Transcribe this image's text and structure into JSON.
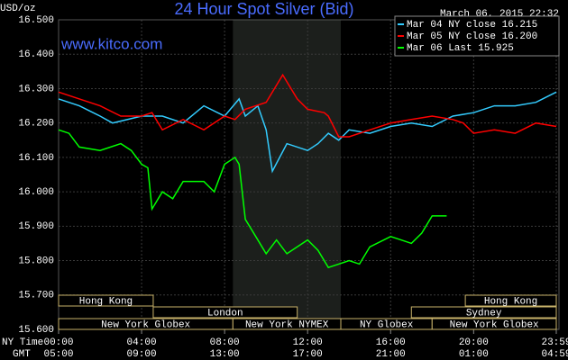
{
  "chart_data": {
    "type": "line",
    "title": "24 Hour Spot Silver (Bid)",
    "site": "www.kitco.com",
    "timestamp": "March 06, 2015 22:32",
    "y_label": "USD/oz",
    "x_label": "NY Time",
    "x2_label": "GMT",
    "xlim": [
      0,
      23.9833
    ],
    "xticks": [
      {
        "value": 0,
        "label": "00:00"
      },
      {
        "value": 4,
        "label": "04:00"
      },
      {
        "value": 8,
        "label": "08:00"
      },
      {
        "value": 12,
        "label": "12:00"
      },
      {
        "value": 16,
        "label": "16:00"
      },
      {
        "value": 20,
        "label": "20:00"
      },
      {
        "value": 23.9833,
        "label": "23:59"
      }
    ],
    "x2tick_labels": [
      "05:00",
      "09:00",
      "13:00",
      "17:00",
      "21:00",
      "01:00",
      "04:59"
    ],
    "ylim": [
      15.6,
      16.5
    ],
    "yticks": [
      {
        "value": 15.6,
        "label": "15.600"
      },
      {
        "value": 15.7,
        "label": "15.700"
      },
      {
        "value": 15.8,
        "label": "15.800"
      },
      {
        "value": 15.9,
        "label": "15.900"
      },
      {
        "value": 16.0,
        "label": "16.000"
      },
      {
        "value": 16.1,
        "label": "16.100"
      },
      {
        "value": 16.2,
        "label": "16.200"
      },
      {
        "value": 16.3,
        "label": "16.300"
      },
      {
        "value": 16.4,
        "label": "16.400"
      },
      {
        "value": 16.5,
        "label": "16.500"
      }
    ],
    "grid": true,
    "legend": "top-right",
    "sessions": [
      [
        {
          "label": "Hong Kong",
          "start": 0,
          "end": 4.56
        },
        {
          "label": "Hong Kong",
          "start": 19.6,
          "end": 23.9833
        }
      ],
      [
        {
          "label": "London",
          "start": 4.56,
          "end": 11.5
        },
        {
          "label": "Sydney",
          "start": 17,
          "end": 23.9833
        }
      ],
      [
        {
          "label": "New York Globex",
          "start": 0,
          "end": 8.4
        },
        {
          "label": "New York NYMEX",
          "start": 8.4,
          "end": 13.6
        },
        {
          "label": "NY Globex",
          "start": 13.6,
          "end": 18
        },
        {
          "label": "New York Globex",
          "start": 18,
          "end": 23.9833
        }
      ]
    ],
    "series": [
      {
        "name": "Mar 04 NY close 16.215",
        "color": "#33ccff",
        "x": [
          0,
          1,
          2,
          2.6,
          4,
          5,
          6,
          7,
          8,
          8.7,
          9,
          9.6,
          10,
          10.3,
          11,
          12,
          12.5,
          13,
          13.5,
          14,
          15,
          16,
          17,
          18,
          19,
          20,
          21,
          22,
          23,
          23.9833
        ],
        "values": [
          16.27,
          16.25,
          16.22,
          16.2,
          16.22,
          16.22,
          16.2,
          16.25,
          16.22,
          16.27,
          16.22,
          16.25,
          16.18,
          16.06,
          16.14,
          16.12,
          16.14,
          16.17,
          16.15,
          16.18,
          16.17,
          16.19,
          16.2,
          16.19,
          16.22,
          16.23,
          16.25,
          16.25,
          16.26,
          16.29
        ]
      },
      {
        "name": "Mar 05 NY close 16.200",
        "color": "#ff0000",
        "x": [
          0,
          1,
          2,
          3,
          4,
          4.5,
          5,
          6,
          7,
          8,
          8.5,
          9,
          10,
          10.8,
          11.5,
          12,
          12.8,
          13,
          13.5,
          14,
          15,
          16,
          17,
          18,
          19,
          19.5,
          20,
          21,
          22,
          23,
          23.9833
        ],
        "values": [
          16.29,
          16.27,
          16.25,
          16.22,
          16.22,
          16.23,
          16.18,
          16.21,
          16.18,
          16.22,
          16.21,
          16.24,
          16.26,
          16.34,
          16.27,
          16.24,
          16.23,
          16.22,
          16.16,
          16.16,
          16.18,
          16.2,
          16.21,
          16.22,
          16.21,
          16.2,
          16.17,
          16.18,
          16.17,
          16.2,
          16.19
        ]
      },
      {
        "name": "Mar 06 Last 15.925",
        "color": "#00ff00",
        "x": [
          0,
          0.5,
          1,
          2,
          3,
          3.5,
          4,
          4.3,
          4.5,
          5,
          5.5,
          6,
          7,
          7.5,
          8,
          8.5,
          8.7,
          9,
          9.5,
          10,
          10.5,
          11,
          11.5,
          12,
          12.5,
          13,
          13.5,
          14,
          14.5,
          15,
          16,
          16.5,
          17,
          17.5,
          18,
          18.7
        ],
        "values": [
          16.18,
          16.17,
          16.13,
          16.12,
          16.14,
          16.12,
          16.08,
          16.07,
          15.95,
          16.0,
          15.98,
          16.03,
          16.03,
          16.0,
          16.08,
          16.1,
          16.08,
          15.92,
          15.87,
          15.82,
          15.86,
          15.82,
          15.84,
          15.86,
          15.83,
          15.78,
          15.79,
          15.8,
          15.79,
          15.84,
          15.87,
          15.86,
          15.85,
          15.88,
          15.93,
          15.93
        ]
      }
    ]
  }
}
